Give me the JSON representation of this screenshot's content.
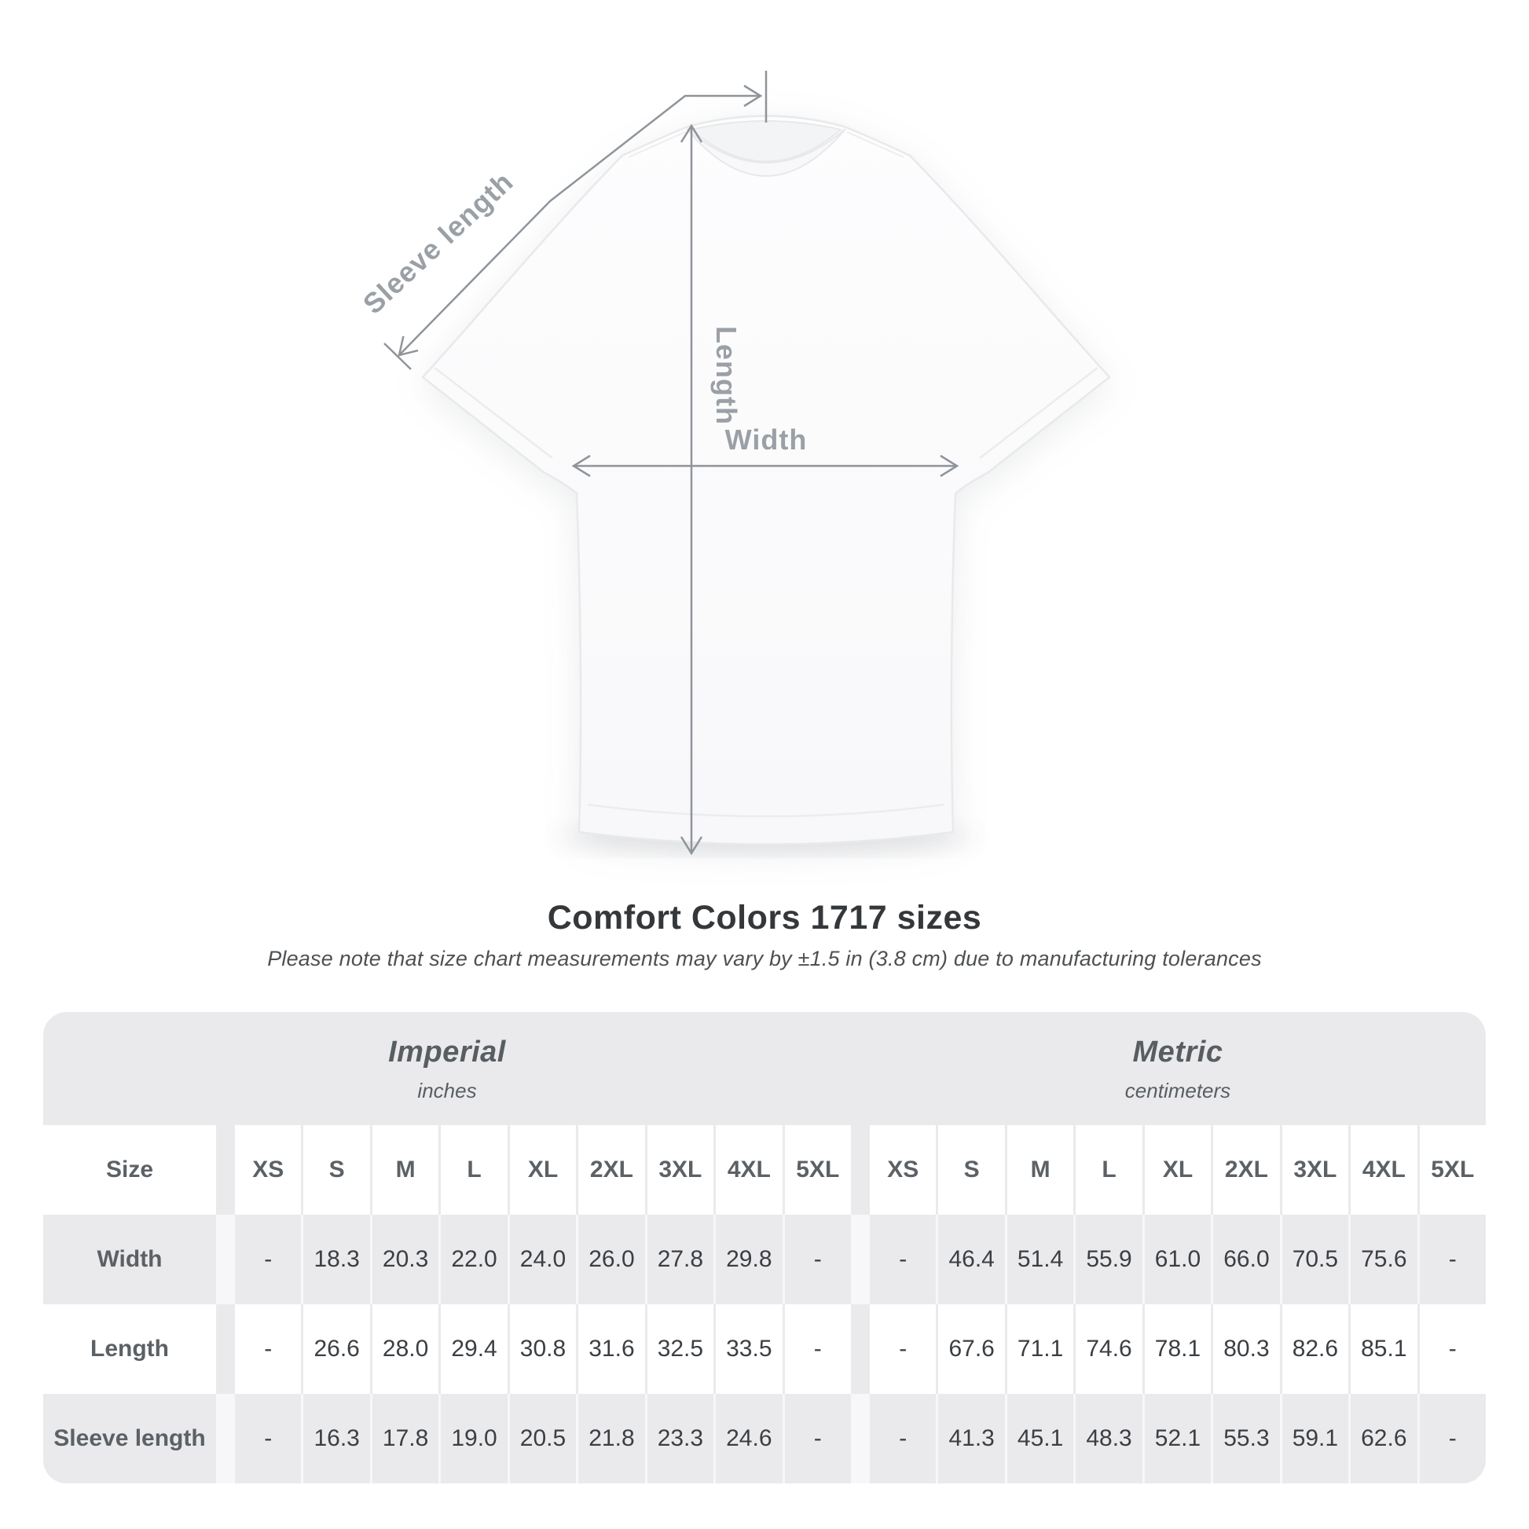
{
  "diagram": {
    "labels": {
      "sleeve_length": "Sleeve length",
      "length": "Length",
      "width": "Width"
    }
  },
  "title": "Comfort Colors 1717 sizes",
  "subtitle": "Please note that size chart measurements may vary by ±1.5 in (3.8 cm) due to manufacturing tolerances",
  "table": {
    "size_col_header": "Size",
    "groups": [
      {
        "label": "Imperial",
        "sublabel": "inches"
      },
      {
        "label": "Metric",
        "sublabel": "centimeters"
      }
    ],
    "sizes": [
      "XS",
      "S",
      "M",
      "L",
      "XL",
      "2XL",
      "3XL",
      "4XL",
      "5XL"
    ],
    "rows": [
      {
        "label": "Width",
        "imperial": [
          "-",
          "18.3",
          "20.3",
          "22.0",
          "24.0",
          "26.0",
          "27.8",
          "29.8",
          "-"
        ],
        "metric": [
          "-",
          "46.4",
          "51.4",
          "55.9",
          "61.0",
          "66.0",
          "70.5",
          "75.6",
          "-"
        ]
      },
      {
        "label": "Length",
        "imperial": [
          "-",
          "26.6",
          "28.0",
          "29.4",
          "30.8",
          "31.6",
          "32.5",
          "33.5",
          "-"
        ],
        "metric": [
          "-",
          "67.6",
          "71.1",
          "74.6",
          "78.1",
          "80.3",
          "82.6",
          "85.1",
          "-"
        ]
      },
      {
        "label": "Sleeve length",
        "imperial": [
          "-",
          "16.3",
          "17.8",
          "19.0",
          "20.5",
          "21.8",
          "23.3",
          "24.6",
          "-"
        ],
        "metric": [
          "-",
          "41.3",
          "45.1",
          "48.3",
          "52.1",
          "55.3",
          "59.1",
          "62.6",
          "-"
        ]
      }
    ]
  },
  "chart_data": {
    "type": "table",
    "title": "Comfort Colors 1717 sizes",
    "note": "Measurements may vary by ±1.5 in (3.8 cm) due to manufacturing tolerances",
    "columns": [
      "XS",
      "S",
      "M",
      "L",
      "XL",
      "2XL",
      "3XL",
      "4XL",
      "5XL"
    ],
    "series": [
      {
        "name": "Width (in)",
        "values": [
          null,
          18.3,
          20.3,
          22.0,
          24.0,
          26.0,
          27.8,
          29.8,
          null
        ]
      },
      {
        "name": "Length (in)",
        "values": [
          null,
          26.6,
          28.0,
          29.4,
          30.8,
          31.6,
          32.5,
          33.5,
          null
        ]
      },
      {
        "name": "Sleeve length (in)",
        "values": [
          null,
          16.3,
          17.8,
          19.0,
          20.5,
          21.8,
          23.3,
          24.6,
          null
        ]
      },
      {
        "name": "Width (cm)",
        "values": [
          null,
          46.4,
          51.4,
          55.9,
          61.0,
          66.0,
          70.5,
          75.6,
          null
        ]
      },
      {
        "name": "Length (cm)",
        "values": [
          null,
          67.6,
          71.1,
          74.6,
          78.1,
          80.3,
          82.6,
          85.1,
          null
        ]
      },
      {
        "name": "Sleeve length (cm)",
        "values": [
          null,
          41.3,
          45.1,
          48.3,
          52.1,
          55.3,
          59.1,
          62.6,
          null
        ]
      }
    ]
  },
  "colors": {
    "annotation_line": "#8f949a",
    "annotation_text": "#9aa0a6",
    "title_text": "#35383b",
    "subtitle_text": "#4d5154",
    "table_background": "#eaeaec",
    "table_label_text": "#5c6166",
    "table_value_text": "#3b3f43",
    "white_cell": "#ffffff"
  }
}
